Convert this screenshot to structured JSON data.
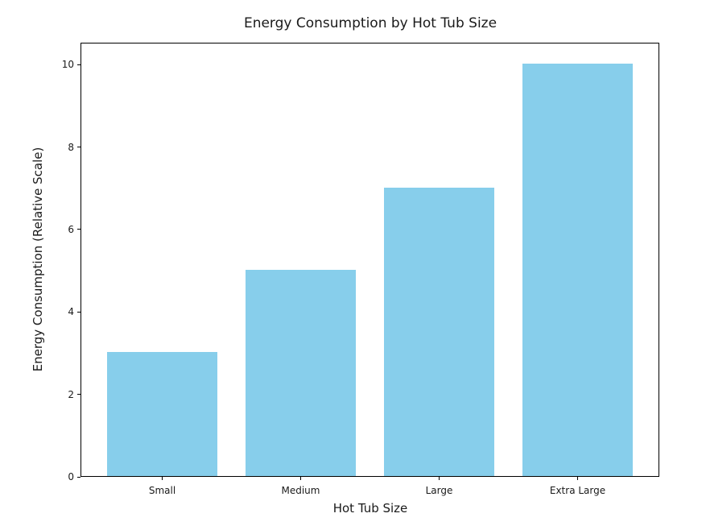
{
  "chart_data": {
    "type": "bar",
    "title": "Energy Consumption by Hot Tub Size",
    "xlabel": "Hot Tub Size",
    "ylabel": "Energy Consumption (Relative Scale)",
    "categories": [
      "Small",
      "Medium",
      "Large",
      "Extra Large"
    ],
    "values": [
      3,
      5,
      7,
      10
    ],
    "yticks": [
      0,
      2,
      4,
      6,
      8,
      10
    ],
    "ylim": [
      0,
      10.53
    ],
    "xlim": [
      -0.59,
      3.59
    ],
    "bar_width": 0.8,
    "bar_color": "#87CEEB",
    "background_color": "#ffffff",
    "spine_color": "#000000",
    "text_color": "#1a1a1a",
    "grid": false,
    "legend": "none"
  }
}
